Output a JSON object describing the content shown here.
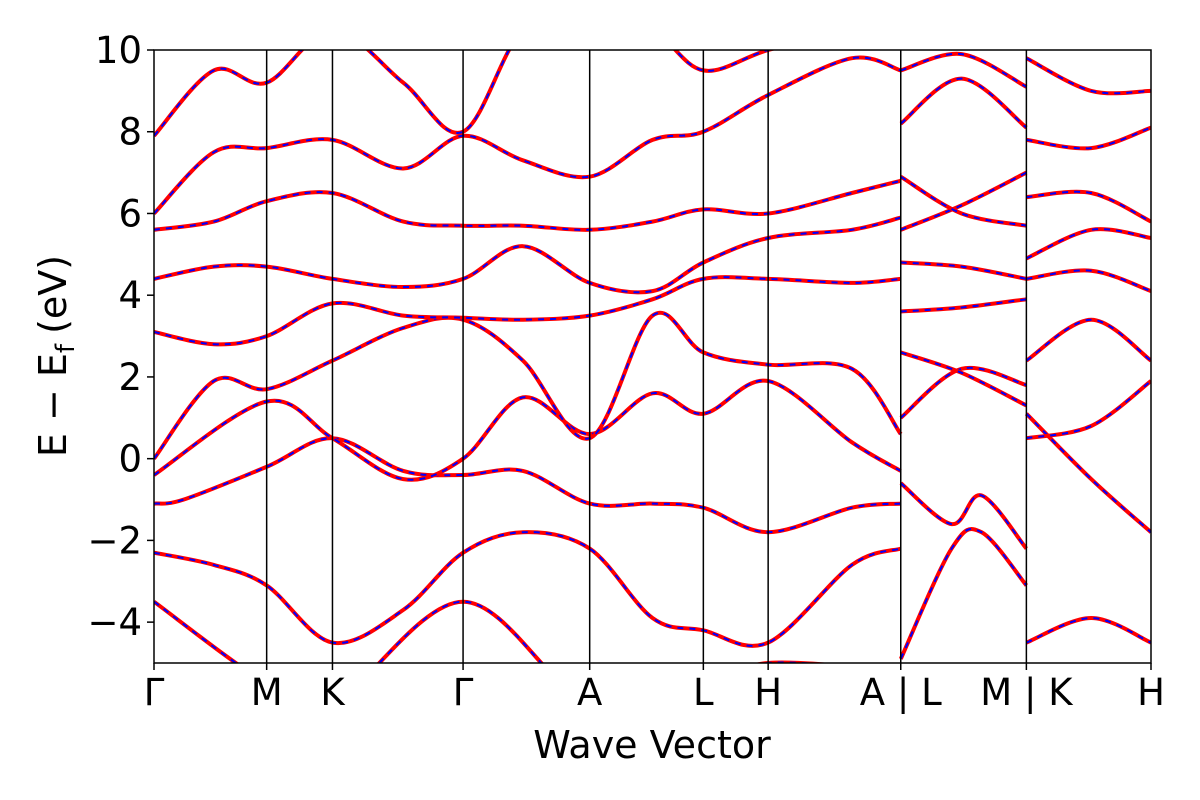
{
  "chart_data": {
    "type": "line",
    "title": "",
    "xlabel": "Wave Vector",
    "ylabel": "E − E_f (eV)",
    "ylabel_parts": {
      "main": "E − E",
      "subscript": "f",
      "unit": "(eV)"
    },
    "ylim": [
      -5,
      10
    ],
    "yticks": [
      -4,
      -2,
      0,
      2,
      4,
      6,
      8,
      10
    ],
    "ytick_labels": [
      "−4",
      "−2",
      "0",
      "2",
      "4",
      "6",
      "8",
      "10"
    ],
    "grid": false,
    "legend": "none",
    "line_colors": {
      "overlay": "#ff0000",
      "dashes": "#0000ff"
    },
    "line_style": "red solid band lines overlaid with blue dashes (two identical band sets)",
    "kpath_breaks": [
      {
        "label": "Γ",
        "x": 0.0
      },
      {
        "label": "M",
        "x": 0.113
      },
      {
        "label": "K",
        "x": 0.179
      },
      {
        "label": "Γ",
        "x": 0.31
      },
      {
        "label": "A",
        "x": 0.437
      },
      {
        "label": "L",
        "x": 0.551
      },
      {
        "label": "H",
        "x": 0.616
      },
      {
        "label": "A | L",
        "x": 0.749
      },
      {
        "label": "M | K",
        "x": 0.875
      },
      {
        "label": "H",
        "x": 1.0
      }
    ],
    "x_range": [
      0,
      1.0
    ],
    "series": [
      {
        "values_x": [
          0.0,
          0.113,
          0.179,
          0.31,
          0.437,
          0.551,
          0.616,
          0.749
        ],
        "values": [
          -3.5,
          -5.5,
          -6.0,
          -3.5,
          -6.0,
          -5.6,
          -5.0,
          -5.2
        ]
      },
      {
        "values_x": [
          0.0,
          0.06,
          0.113,
          0.179,
          0.25,
          0.31,
          0.37,
          0.437,
          0.5,
          0.551,
          0.616,
          0.7,
          0.749
        ],
        "values": [
          -2.3,
          -2.6,
          -3.1,
          -4.5,
          -3.7,
          -2.3,
          -1.8,
          -2.2,
          -3.9,
          -4.2,
          -4.5,
          -2.6,
          -2.2
        ]
      },
      {
        "values_x": [
          0.0,
          0.03,
          0.113,
          0.179,
          0.25,
          0.31,
          0.37,
          0.437,
          0.5,
          0.551,
          0.616,
          0.7,
          0.749
        ],
        "values": [
          -1.1,
          -1.0,
          -0.2,
          0.5,
          -0.3,
          -0.4,
          -0.3,
          -1.1,
          -1.1,
          -1.2,
          -1.8,
          -1.2,
          -1.1
        ]
      },
      {
        "values_x": [
          0.0,
          0.113,
          0.179,
          0.25,
          0.31,
          0.37,
          0.437,
          0.5,
          0.551,
          0.616,
          0.7,
          0.749
        ],
        "values": [
          -0.4,
          1.4,
          0.5,
          -0.5,
          0.0,
          1.5,
          0.6,
          1.6,
          1.1,
          1.9,
          0.4,
          -0.3
        ]
      },
      {
        "values_x": [
          0.0,
          0.06,
          0.113,
          0.179,
          0.25,
          0.31,
          0.37,
          0.437,
          0.5,
          0.551,
          0.616,
          0.7,
          0.749
        ],
        "values": [
          0.0,
          1.9,
          1.7,
          2.4,
          3.2,
          3.4,
          2.4,
          0.5,
          3.5,
          2.6,
          2.3,
          2.2,
          0.6
        ]
      },
      {
        "values_x": [
          0.0,
          0.06,
          0.113,
          0.179,
          0.25,
          0.31,
          0.37,
          0.437,
          0.5,
          0.551,
          0.616,
          0.7,
          0.749
        ],
        "values": [
          3.1,
          2.8,
          3.0,
          3.8,
          3.5,
          3.45,
          3.4,
          3.5,
          3.9,
          4.4,
          4.4,
          4.3,
          4.4
        ]
      },
      {
        "values_x": [
          0.0,
          0.06,
          0.113,
          0.179,
          0.25,
          0.31,
          0.37,
          0.437,
          0.5,
          0.551,
          0.616,
          0.7,
          0.749
        ],
        "values": [
          4.4,
          4.7,
          4.7,
          4.4,
          4.2,
          4.4,
          5.2,
          4.3,
          4.1,
          4.8,
          5.4,
          5.6,
          5.9
        ]
      },
      {
        "values_x": [
          0.0,
          0.06,
          0.113,
          0.179,
          0.25,
          0.31,
          0.37,
          0.437,
          0.5,
          0.551,
          0.616,
          0.7,
          0.749
        ],
        "values": [
          5.6,
          5.8,
          6.3,
          6.5,
          5.8,
          5.7,
          5.7,
          5.6,
          5.8,
          6.1,
          6.0,
          6.5,
          6.8
        ]
      },
      {
        "values_x": [
          0.0,
          0.06,
          0.113,
          0.179,
          0.25,
          0.31,
          0.37,
          0.437,
          0.5,
          0.551,
          0.616,
          0.7,
          0.749
        ],
        "values": [
          6.0,
          7.5,
          7.6,
          7.8,
          7.1,
          7.9,
          7.3,
          6.9,
          7.8,
          8.0,
          8.9,
          9.8,
          9.5
        ]
      },
      {
        "values_x": [
          0.0,
          0.06,
          0.113,
          0.179,
          0.25,
          0.31,
          0.37,
          0.437,
          0.5,
          0.551,
          0.616,
          0.7,
          0.749
        ],
        "values": [
          7.9,
          9.5,
          9.2,
          10.5,
          9.2,
          8.0,
          10.5,
          11.0,
          10.5,
          9.5,
          10.0,
          10.5,
          10.8
        ]
      },
      {
        "values_x": [
          0.749,
          0.8,
          0.83,
          0.875
        ],
        "values": [
          -4.9,
          -2.2,
          -1.8,
          -3.1
        ]
      },
      {
        "values_x": [
          0.749,
          0.8,
          0.83,
          0.875
        ],
        "values": [
          -0.6,
          -1.6,
          -0.9,
          -2.2
        ]
      },
      {
        "values_x": [
          0.749,
          0.81,
          0.875
        ],
        "values": [
          1.0,
          2.2,
          1.8
        ]
      },
      {
        "values_x": [
          0.749,
          0.81,
          0.875
        ],
        "values": [
          2.6,
          2.1,
          1.3
        ]
      },
      {
        "values_x": [
          0.749,
          0.81,
          0.875
        ],
        "values": [
          3.6,
          3.7,
          3.9
        ]
      },
      {
        "values_x": [
          0.749,
          0.81,
          0.875
        ],
        "values": [
          4.8,
          4.7,
          4.4
        ]
      },
      {
        "values_x": [
          0.749,
          0.81,
          0.875
        ],
        "values": [
          5.6,
          6.2,
          7.0
        ]
      },
      {
        "values_x": [
          0.749,
          0.81,
          0.875
        ],
        "values": [
          6.9,
          6.0,
          5.7
        ]
      },
      {
        "values_x": [
          0.749,
          0.81,
          0.875
        ],
        "values": [
          8.2,
          9.3,
          8.1
        ]
      },
      {
        "values_x": [
          0.749,
          0.81,
          0.875
        ],
        "values": [
          9.5,
          9.9,
          9.1
        ]
      },
      {
        "values_x": [
          0.875,
          0.94,
          1.0
        ],
        "values": [
          -4.5,
          -3.9,
          -4.5
        ]
      },
      {
        "values_x": [
          0.875,
          0.94,
          1.0
        ],
        "values": [
          1.1,
          -0.5,
          -1.8
        ]
      },
      {
        "values_x": [
          0.875,
          0.94,
          1.0
        ],
        "values": [
          0.5,
          0.8,
          1.9
        ]
      },
      {
        "values_x": [
          0.875,
          0.94,
          1.0
        ],
        "values": [
          2.4,
          3.4,
          2.4
        ]
      },
      {
        "values_x": [
          0.875,
          0.94,
          1.0
        ],
        "values": [
          4.4,
          4.6,
          4.1
        ]
      },
      {
        "values_x": [
          0.875,
          0.94,
          1.0
        ],
        "values": [
          4.9,
          5.6,
          5.4
        ]
      },
      {
        "values_x": [
          0.875,
          0.94,
          1.0
        ],
        "values": [
          6.4,
          6.5,
          5.8
        ]
      },
      {
        "values_x": [
          0.875,
          0.94,
          1.0
        ],
        "values": [
          7.8,
          7.6,
          8.1
        ]
      },
      {
        "values_x": [
          0.875,
          0.94,
          1.0
        ],
        "values": [
          9.8,
          9.0,
          9.0
        ]
      }
    ]
  }
}
